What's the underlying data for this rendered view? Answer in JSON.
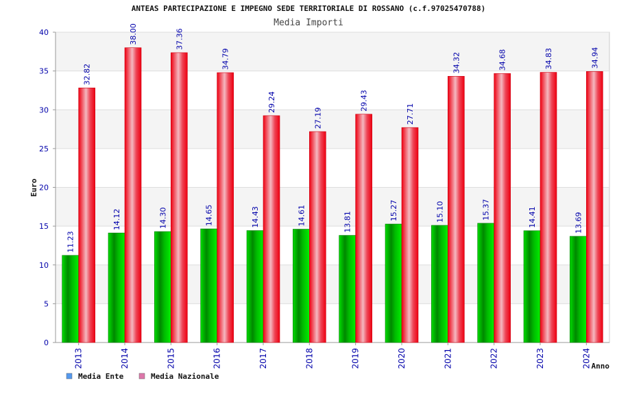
{
  "chart_data": {
    "type": "bar",
    "title": "ANTEAS PARTECIPAZIONE E IMPEGNO SEDE TERRITORIALE DI ROSSANO (c.f.97025470788)",
    "subtitle": "Media Importi",
    "xlabel": "Anno",
    "ylabel": "Euro",
    "ylim": [
      0,
      40
    ],
    "yticks": [
      "0",
      "5",
      "10",
      "15",
      "20",
      "25",
      "30",
      "35",
      "40"
    ],
    "categories": [
      "2013",
      "2014",
      "2015",
      "2016",
      "2017",
      "2018",
      "2019",
      "2020",
      "2021",
      "2022",
      "2023",
      "2024"
    ],
    "series": [
      {
        "name": "Media Ente",
        "color": "#00aa00",
        "values": [
          11.23,
          14.12,
          14.3,
          14.65,
          14.43,
          14.61,
          13.81,
          15.27,
          15.1,
          15.37,
          14.41,
          13.69
        ],
        "labels": [
          "11.23",
          "14.12",
          "14.30",
          "14.65",
          "14.43",
          "14.61",
          "13.81",
          "15.27",
          "15.10",
          "15.37",
          "14.41",
          "13.69"
        ]
      },
      {
        "name": "Media Nazionale",
        "color": "#ee1122",
        "values": [
          32.82,
          38.0,
          37.36,
          34.79,
          29.24,
          27.19,
          29.43,
          27.71,
          34.32,
          34.68,
          34.83,
          34.94
        ],
        "labels": [
          "32.82",
          "38.00",
          "37.36",
          "34.79",
          "29.24",
          "27.19",
          "29.43",
          "27.71",
          "34.32",
          "34.68",
          "34.83",
          "34.94"
        ]
      }
    ],
    "legend": [
      {
        "name": "Media Ente",
        "color": "#5599ee"
      },
      {
        "name": "Media Nazionale",
        "color": "#dd77aa"
      }
    ],
    "legend_position": "bottom-left",
    "grid": true
  }
}
